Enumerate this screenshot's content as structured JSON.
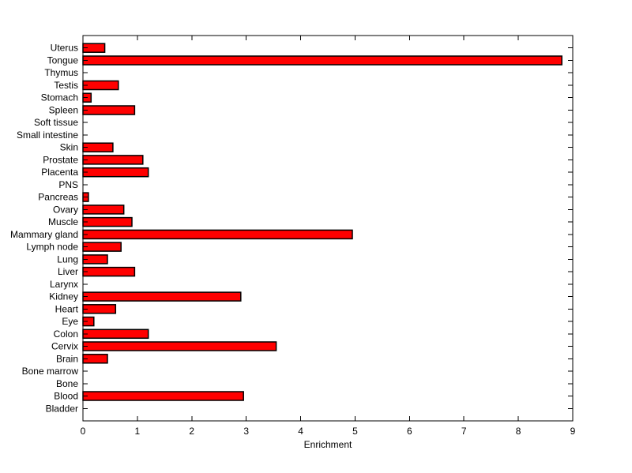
{
  "chart_data": {
    "type": "bar",
    "orientation": "horizontal",
    "title": "",
    "xlabel": "Enrichment",
    "ylabel": "",
    "xlim": [
      0,
      9
    ],
    "x_ticks": [
      0,
      1,
      2,
      3,
      4,
      5,
      6,
      7,
      8,
      9
    ],
    "grid": false,
    "legend": null,
    "bar_color": "#ff0000",
    "bar_edge_color": "#000000",
    "axis_color": "#000000",
    "background_color": "#ffffff",
    "categories": [
      "Uterus",
      "Tongue",
      "Thymus",
      "Testis",
      "Stomach",
      "Spleen",
      "Soft tissue",
      "Small intestine",
      "Skin",
      "Prostate",
      "Placenta",
      "PNS",
      "Pancreas",
      "Ovary",
      "Muscle",
      "Mammary gland",
      "Lymph node",
      "Lung",
      "Liver",
      "Larynx",
      "Kidney",
      "Heart",
      "Eye",
      "Colon",
      "Cervix",
      "Brain",
      "Bone marrow",
      "Bone",
      "Blood",
      "Bladder"
    ],
    "values": [
      0.4,
      8.8,
      0,
      0.65,
      0.15,
      0.95,
      0,
      0,
      0.55,
      1.1,
      1.2,
      0,
      0.1,
      0.75,
      0.9,
      4.95,
      0.7,
      0.45,
      0.95,
      0,
      2.9,
      0.6,
      0.2,
      1.2,
      3.55,
      0.45,
      0,
      0,
      2.95,
      0
    ]
  }
}
